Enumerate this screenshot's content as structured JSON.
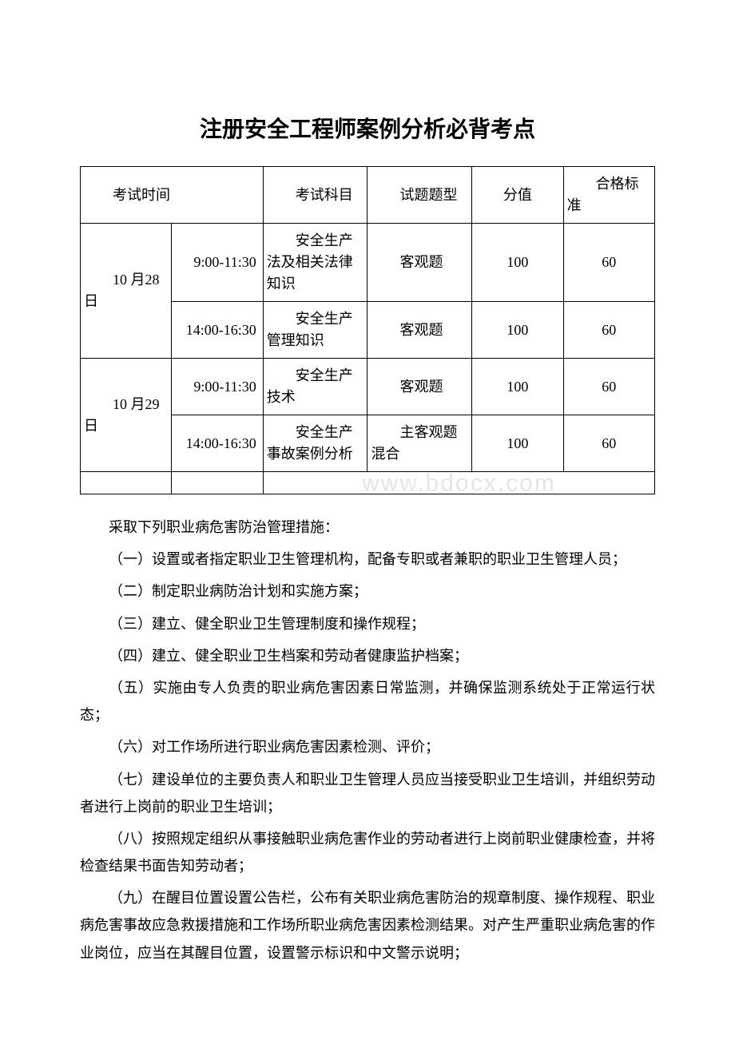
{
  "title": "注册安全工程师案例分析必背考点",
  "table": {
    "header": {
      "time": "考试时间",
      "subject": "考试科目",
      "type": "试题题型",
      "score": "分值",
      "pass": "合格标准"
    },
    "rows": [
      {
        "date": "10 月28 日",
        "time": "9:00-11:30",
        "subject": "安全生产法及相关法律知识",
        "type": "客观题",
        "score": "100",
        "pass": "60"
      },
      {
        "date": "",
        "time": "14:00-16:30",
        "subject": "安全生产管理知识",
        "type": "客观题",
        "score": "100",
        "pass": "60"
      },
      {
        "date": "10 月29 日",
        "time": "9:00-11:30",
        "subject": "安全生产技术",
        "type": "客观题",
        "score": "100",
        "pass": "60"
      },
      {
        "date": "",
        "time": "14:00-16:30",
        "subject": "安全生产事故案例分析",
        "type": "主客观题混合",
        "score": "100",
        "pass": "60"
      }
    ]
  },
  "watermark": "www.bdocx.com",
  "paragraphs": [
    "采取下列职业病危害防治管理措施：",
    "（一）设置或者指定职业卫生管理机构，配备专职或者兼职的职业卫生管理人员；",
    "（二）制定职业病防治计划和实施方案；",
    "（三）建立、健全职业卫生管理制度和操作规程；",
    "（四）建立、健全职业卫生档案和劳动者健康监护档案；",
    "（五）实施由专人负责的职业病危害因素日常监测，并确保监测系统处于正常运行状态；",
    "（六）对工作场所进行职业病危害因素检测、评价；",
    "（七）建设单位的主要负责人和职业卫生管理人员应当接受职业卫生培训，并组织劳动者进行上岗前的职业卫生培训；",
    "（八）按照规定组织从事接触职业病危害作业的劳动者进行上岗前职业健康检查，并将检查结果书面告知劳动者；",
    "（九）在醒目位置设置公告栏，公布有关职业病危害防治的规章制度、操作规程、职业病危害事故应急救援措施和工作场所职业病危害因素检测结果。对产生严重职业病危害的作业岗位，应当在其醒目位置，设置警示标识和中文警示说明；"
  ],
  "colors": {
    "text": "#000000",
    "background": "#ffffff",
    "border": "#000000",
    "watermark": "#e5e5e5"
  },
  "fonts": {
    "title_family": "SimHei",
    "body_family": "SimSun",
    "title_size_pt": 21,
    "body_size_pt": 13.5
  }
}
